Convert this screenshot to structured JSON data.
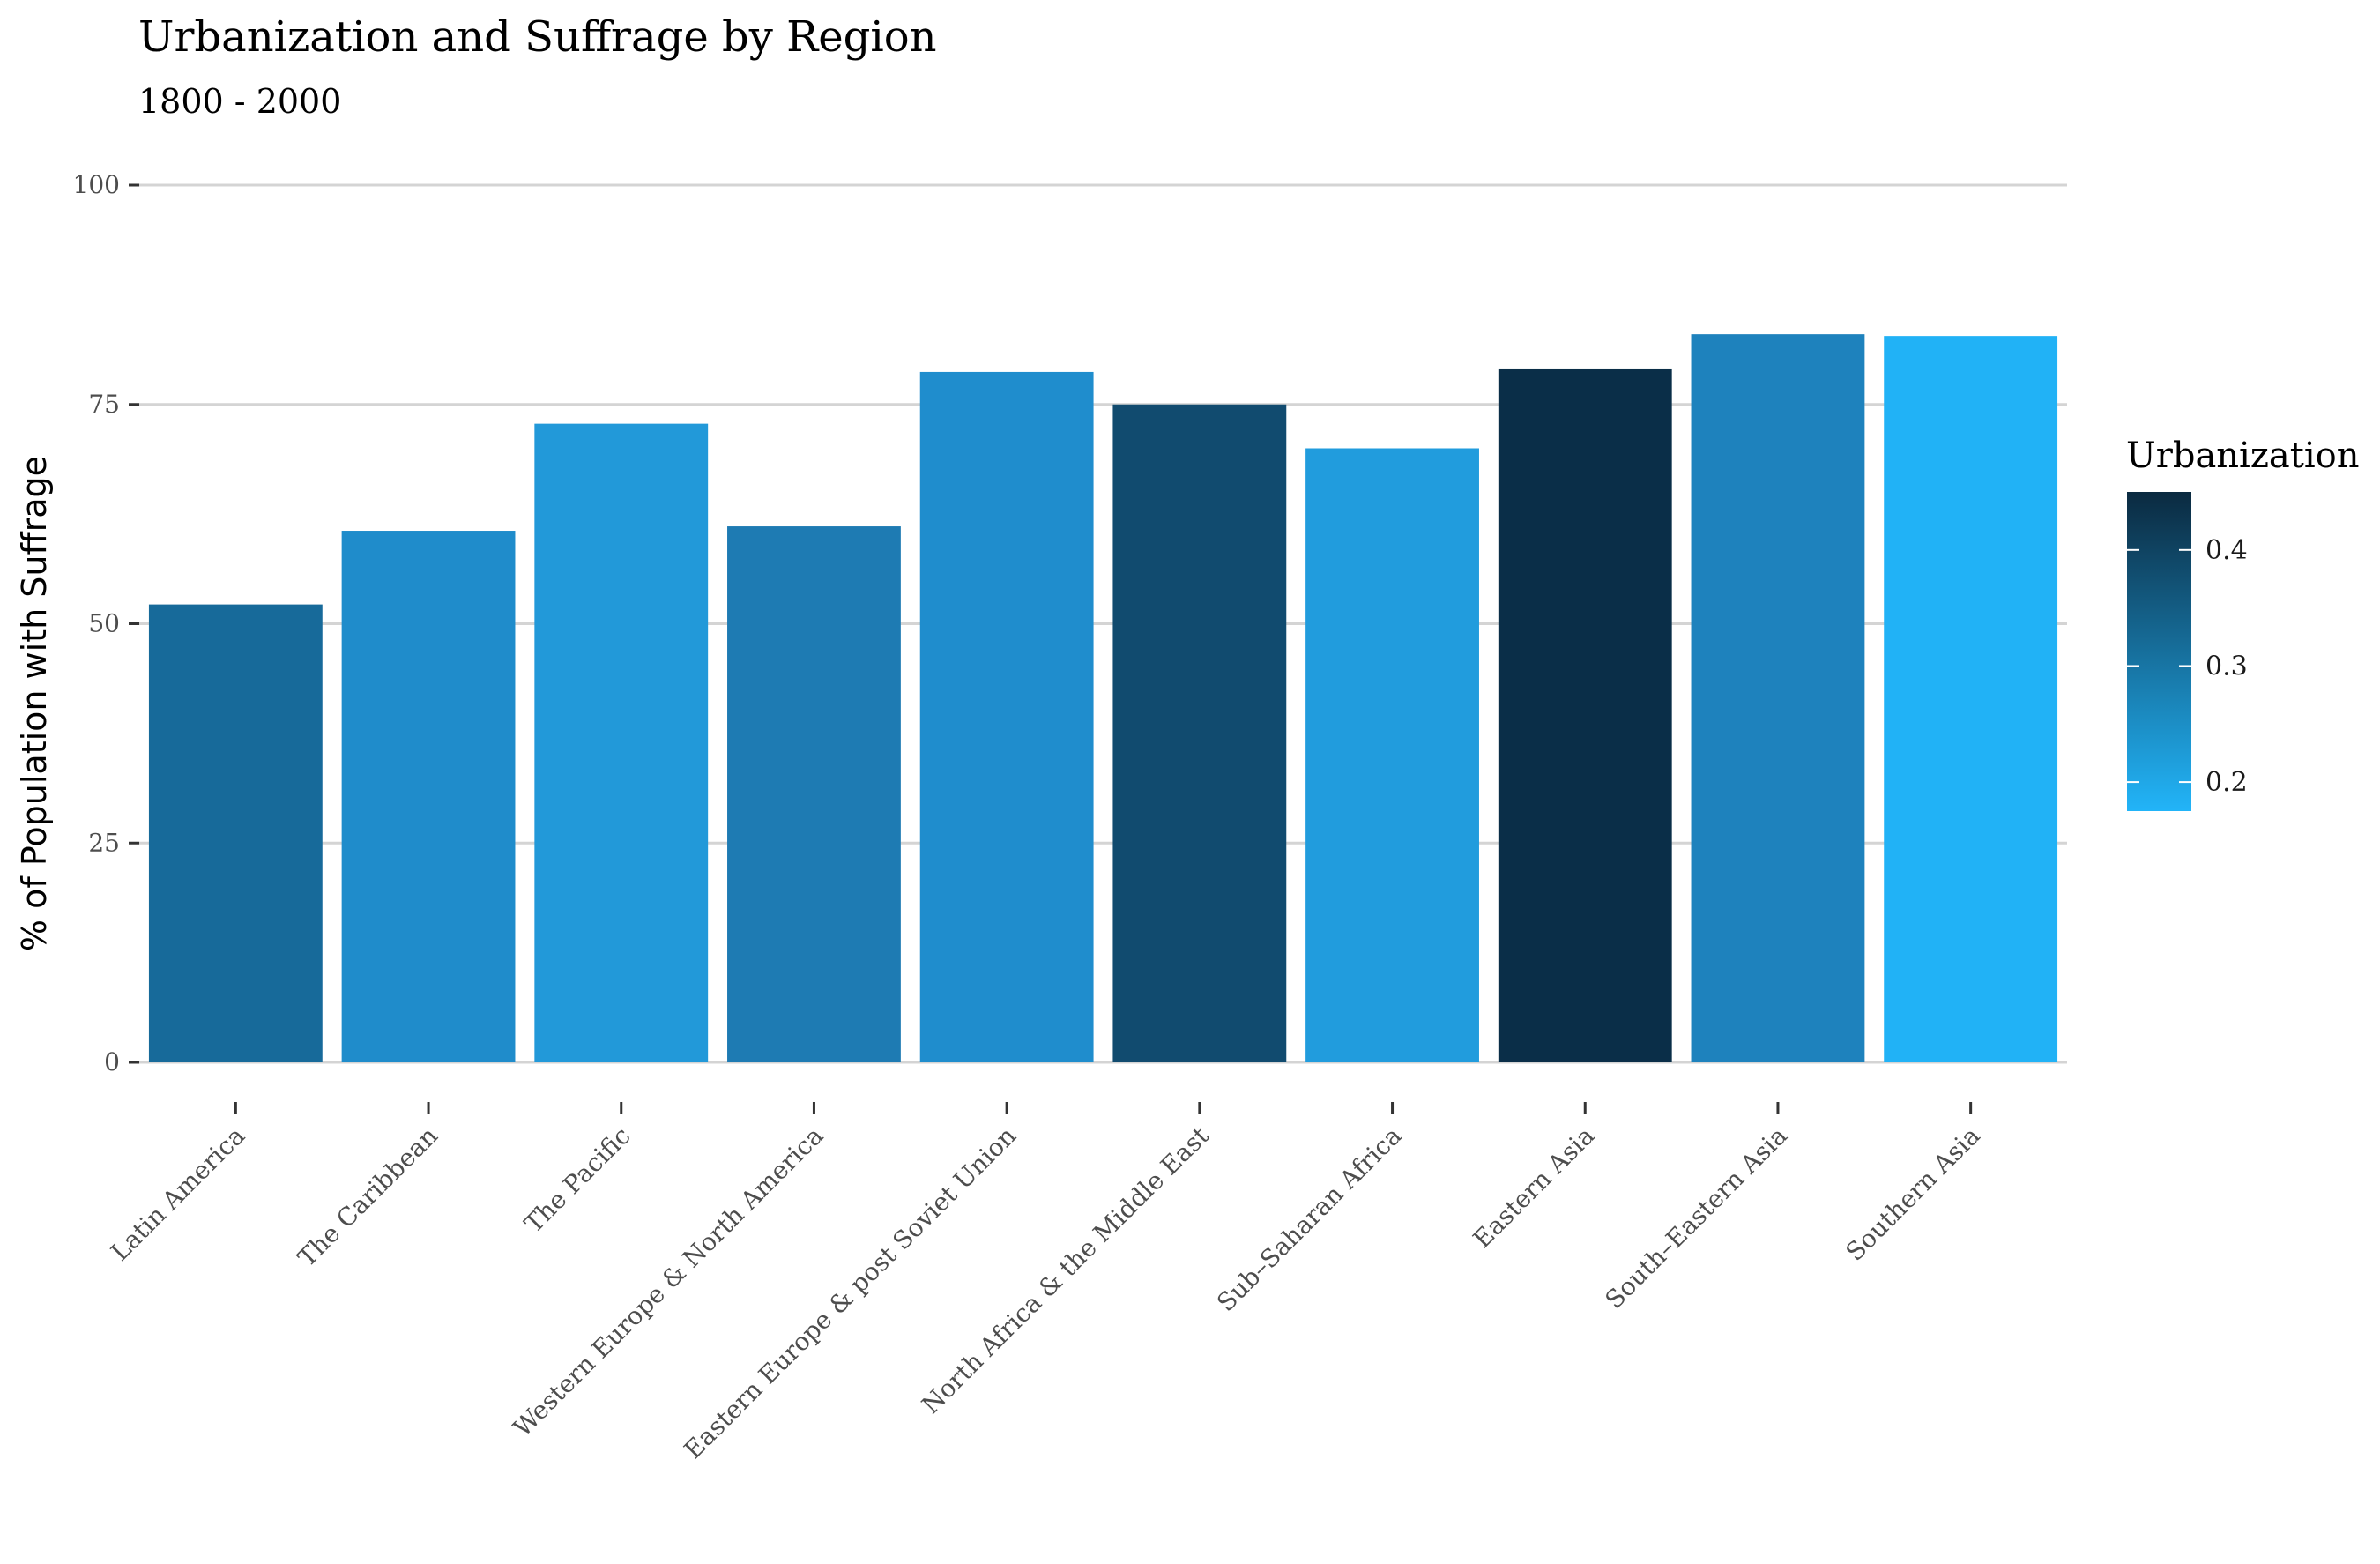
{
  "chart_data": {
    "type": "bar",
    "title": "Urbanization and Suffrage by Region",
    "subtitle": "1800 - 2000",
    "xlabel": "",
    "ylabel": "% of Population with Suffrage",
    "ylim": [
      0,
      100
    ],
    "yticks": [
      0,
      25,
      50,
      75,
      100
    ],
    "grid": true,
    "categories": [
      "Latin America",
      "The Caribbean",
      "The Pacific",
      "Western Europe & North America",
      "Eastern Europe & post Soviet Union",
      "North Africa & the Middle East",
      "Sub–Saharan Africa",
      "Eastern Asia",
      "South–Eastern Asia",
      "Southern Asia"
    ],
    "values": [
      52.2,
      60.6,
      72.8,
      61.1,
      78.7,
      75.0,
      70.0,
      79.1,
      83.0,
      82.8
    ],
    "fill_values": [
      0.34,
      0.275,
      0.23,
      0.3,
      0.26,
      0.375,
      0.225,
      0.445,
      0.29,
      0.175
    ],
    "colors": [
      "#176a9a",
      "#1f8ccb",
      "#2299d9",
      "#1e7bb3",
      "#1f8dcd",
      "#114b6f",
      "#219cdd",
      "#0a2e48",
      "#1e82bd",
      "#21b2f6"
    ],
    "legend": {
      "title": "Urbanization",
      "placement": "right",
      "range": [
        0.175,
        0.45
      ],
      "ticks": [
        0.2,
        0.3,
        0.4
      ],
      "tick_labels": [
        "0.2",
        "0.3",
        "0.4"
      ],
      "color_low": "#22b4f8",
      "color_high": "#0b2a40"
    }
  }
}
